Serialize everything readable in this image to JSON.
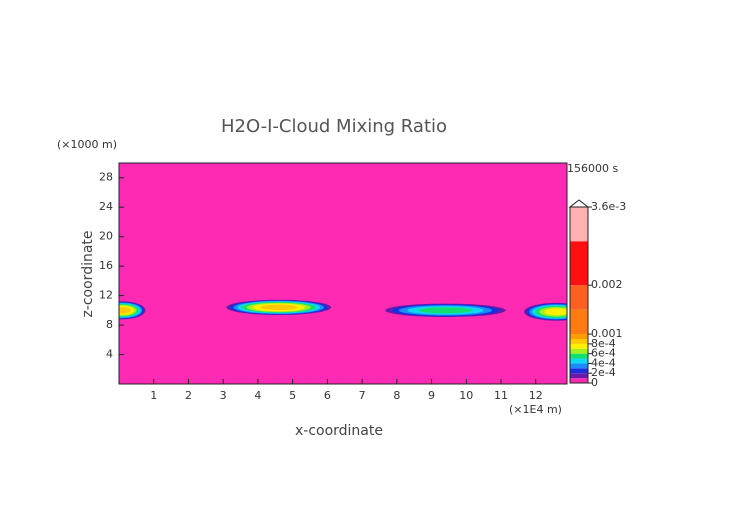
{
  "chart_data": {
    "type": "contour",
    "title": "H2O-I-Cloud Mixing Ratio",
    "time_label": "156000 s",
    "x_label": "x-coordinate",
    "y_label": "z-coordinate",
    "x_unit": "(×1E4 m)",
    "y_unit": "(×1000 m)",
    "xlim": [
      0,
      12.9
    ],
    "ylim": [
      0,
      30
    ],
    "xticks": [
      1,
      2,
      3,
      4,
      5,
      6,
      7,
      8,
      9,
      10,
      11,
      12
    ],
    "yticks": [
      4,
      8,
      12,
      16,
      20,
      24,
      28
    ],
    "background_color": "#ff2ab4",
    "blobs": [
      {
        "x": 0.1,
        "z": 10,
        "rx": 0.7,
        "rz": 1.3,
        "peak": 0.0009
      },
      {
        "x": 4.6,
        "z": 10.4,
        "rx": 1.6,
        "rz": 1.1,
        "peak": 0.0009
      },
      {
        "x": 9.4,
        "z": 10,
        "rx": 1.9,
        "rz": 1.0,
        "peak": 0.0006
      },
      {
        "x": 12.6,
        "z": 9.8,
        "rx": 1.0,
        "rz": 1.3,
        "peak": 0.0008
      }
    ],
    "colorbar": {
      "lim": [
        0,
        0.0036
      ],
      "levels": [
        0,
        0.0001,
        0.0002,
        0.0003,
        0.0004,
        0.0005,
        0.0006,
        0.0007,
        0.0008,
        0.0009,
        0.001,
        0.0015,
        0.002,
        0.0029,
        0.0036
      ],
      "colors": [
        "#ff2ab4",
        "#6a1aa8",
        "#1a2ee0",
        "#1a8cff",
        "#10d8f0",
        "#10e070",
        "#a0f020",
        "#fff000",
        "#ffc800",
        "#ff9c00",
        "#ff7a10",
        "#ff6020",
        "#ff1010",
        "#ffb0b0"
      ],
      "ticks": [
        0,
        {
          "value": 0.0002,
          "label": "2e-4"
        },
        {
          "value": 0.0004,
          "label": "4e-4"
        },
        {
          "value": 0.0006,
          "label": "6e-4"
        },
        {
          "value": 0.0008,
          "label": "8e-4"
        },
        0.001,
        0.002,
        {
          "value": 0.0036,
          "label": "3.6e-3"
        }
      ]
    }
  }
}
